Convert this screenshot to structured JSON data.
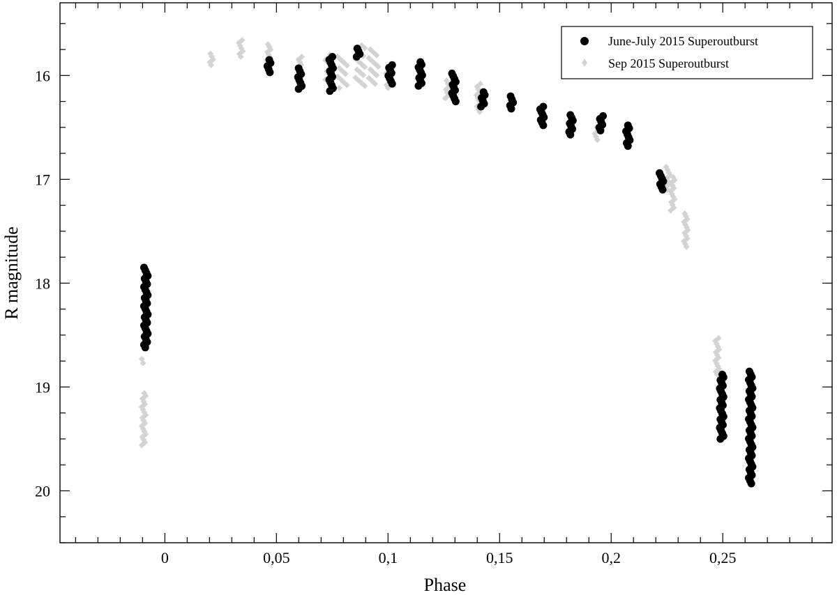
{
  "chart_data": {
    "type": "scatter",
    "xlabel": "Phase",
    "ylabel": "R magnitude",
    "xlim": [
      -0.047,
      0.299
    ],
    "ylim": [
      15.3,
      20.5
    ],
    "y_inverted": true,
    "grid": false,
    "legend_position": "top-right",
    "x_ticks": [
      0,
      0.05,
      0.1,
      0.15,
      0.2,
      0.25
    ],
    "x_tick_labels": [
      "0",
      "0,05",
      "0,1",
      "0,15",
      "0,2",
      "0,25"
    ],
    "y_ticks": [
      16,
      17,
      18,
      19,
      20
    ],
    "y_tick_labels": [
      "16",
      "17",
      "18",
      "19",
      "20"
    ],
    "series": [
      {
        "name": "June-July 2015 Superoutburst",
        "color": "#000000",
        "marker": "circle",
        "groups": [
          {
            "x": -0.0085,
            "y_min": 17.85,
            "y_max": 18.62
          },
          {
            "x": 0.0465,
            "y_min": 15.85,
            "y_max": 15.97
          },
          {
            "x": 0.0605,
            "y_min": 15.93,
            "y_max": 16.13
          },
          {
            "x": 0.0745,
            "y_min": 15.82,
            "y_max": 16.15
          },
          {
            "x": 0.0865,
            "y_min": 15.74,
            "y_max": 15.82
          },
          {
            "x": 0.101,
            "y_min": 15.9,
            "y_max": 16.08
          },
          {
            "x": 0.1145,
            "y_min": 15.87,
            "y_max": 16.1
          },
          {
            "x": 0.1295,
            "y_min": 15.98,
            "y_max": 16.25
          },
          {
            "x": 0.1425,
            "y_min": 16.16,
            "y_max": 16.3
          },
          {
            "x": 0.1555,
            "y_min": 16.2,
            "y_max": 16.32
          },
          {
            "x": 0.169,
            "y_min": 16.3,
            "y_max": 16.48
          },
          {
            "x": 0.182,
            "y_min": 16.38,
            "y_max": 16.57
          },
          {
            "x": 0.1955,
            "y_min": 16.39,
            "y_max": 16.53
          },
          {
            "x": 0.2075,
            "y_min": 16.48,
            "y_max": 16.68
          },
          {
            "x": 0.2225,
            "y_min": 16.94,
            "y_max": 17.1
          },
          {
            "x": 0.2495,
            "y_min": 18.88,
            "y_max": 19.5
          },
          {
            "x": 0.2625,
            "y_min": 18.85,
            "y_max": 19.93
          }
        ]
      },
      {
        "name": "Sep 2015 Superoutburst",
        "color": "#d3d3d3",
        "marker": "diamond",
        "groups": [
          {
            "x": -0.0095,
            "y_min": 18.73,
            "y_max": 18.77
          },
          {
            "x": -0.0095,
            "y_min": 19.06,
            "y_max": 19.56
          },
          {
            "x": 0.021,
            "y_min": 15.79,
            "y_max": 15.9
          },
          {
            "x": 0.034,
            "y_min": 15.66,
            "y_max": 15.82
          },
          {
            "x": 0.0465,
            "y_min": 15.7,
            "y_max": 15.85
          },
          {
            "x": 0.0605,
            "y_min": 15.82,
            "y_max": 16.0
          },
          {
            "x": 0.074,
            "y_min": 15.8,
            "y_max": 16.12
          },
          {
            "x": 0.0795,
            "y_min": 15.82,
            "y_max": 16.12
          },
          {
            "x": 0.0875,
            "y_min": 15.71,
            "y_max": 16.1
          },
          {
            "x": 0.0935,
            "y_min": 15.75,
            "y_max": 16.08
          },
          {
            "x": 0.1,
            "y_min": 15.95,
            "y_max": 16.12
          },
          {
            "x": 0.1265,
            "y_min": 16.05,
            "y_max": 16.22
          },
          {
            "x": 0.1405,
            "y_min": 16.08,
            "y_max": 16.35
          },
          {
            "x": 0.1935,
            "y_min": 16.5,
            "y_max": 16.62
          },
          {
            "x": 0.2255,
            "y_min": 16.88,
            "y_max": 17.1
          },
          {
            "x": 0.2275,
            "y_min": 16.98,
            "y_max": 17.3
          },
          {
            "x": 0.2335,
            "y_min": 17.33,
            "y_max": 17.65
          },
          {
            "x": 0.2475,
            "y_min": 18.53,
            "y_max": 18.88
          }
        ]
      }
    ]
  }
}
